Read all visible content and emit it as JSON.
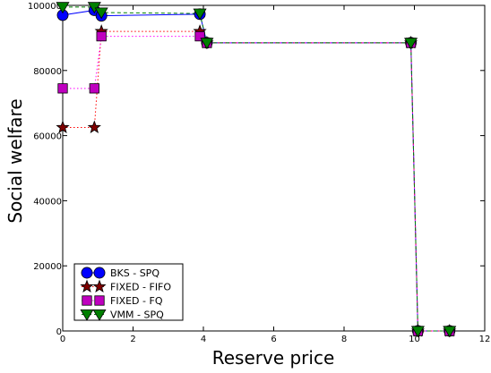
{
  "chart_data": {
    "type": "line",
    "title": "",
    "xlabel": "Reserve price",
    "ylabel": "Social welfare",
    "xlim": [
      0,
      12
    ],
    "ylim": [
      0,
      100000
    ],
    "xticks": [
      0,
      2,
      4,
      6,
      8,
      10,
      12
    ],
    "yticks": [
      0,
      20000,
      40000,
      60000,
      80000,
      100000
    ],
    "grid": false,
    "legend_position": "lower-left",
    "series": [
      {
        "name": "BKS - SPQ",
        "color": "#0000ff",
        "marker_color": "#0000ff",
        "marker": "circle",
        "line_style": "solid",
        "x": [
          0,
          0.9,
          1.1,
          3.9,
          4.1,
          9.9,
          10.1,
          11
        ],
        "y": [
          97000,
          98500,
          96800,
          97300,
          88500,
          88500,
          0,
          0
        ]
      },
      {
        "name": "FIXED - FIFO",
        "color": "#ff0000",
        "marker_color": "#800000",
        "marker": "star",
        "line_style": "dotted",
        "x": [
          0,
          0.9,
          1.1,
          3.9,
          4.1,
          9.9,
          10.1,
          11
        ],
        "y": [
          62500,
          62500,
          92000,
          92000,
          88500,
          88500,
          0,
          0
        ]
      },
      {
        "name": "FIXED - FQ",
        "color": "#ff00ff",
        "marker_color": "#bf00bf",
        "marker": "square",
        "line_style": "dotted",
        "x": [
          0,
          0.9,
          1.1,
          3.9,
          4.1,
          9.9,
          10.1,
          11
        ],
        "y": [
          74500,
          74500,
          90500,
          90500,
          88500,
          88500,
          0,
          0
        ]
      },
      {
        "name": "VMM - SPQ",
        "color": "#008000",
        "marker_color": "#008000",
        "marker": "triangle-down",
        "line_style": "dashed",
        "x": [
          0,
          0.9,
          1.1,
          3.9,
          4.1,
          9.9,
          10.1,
          11
        ],
        "y": [
          99500,
          99500,
          97800,
          97500,
          88500,
          88500,
          0,
          0
        ]
      }
    ]
  }
}
